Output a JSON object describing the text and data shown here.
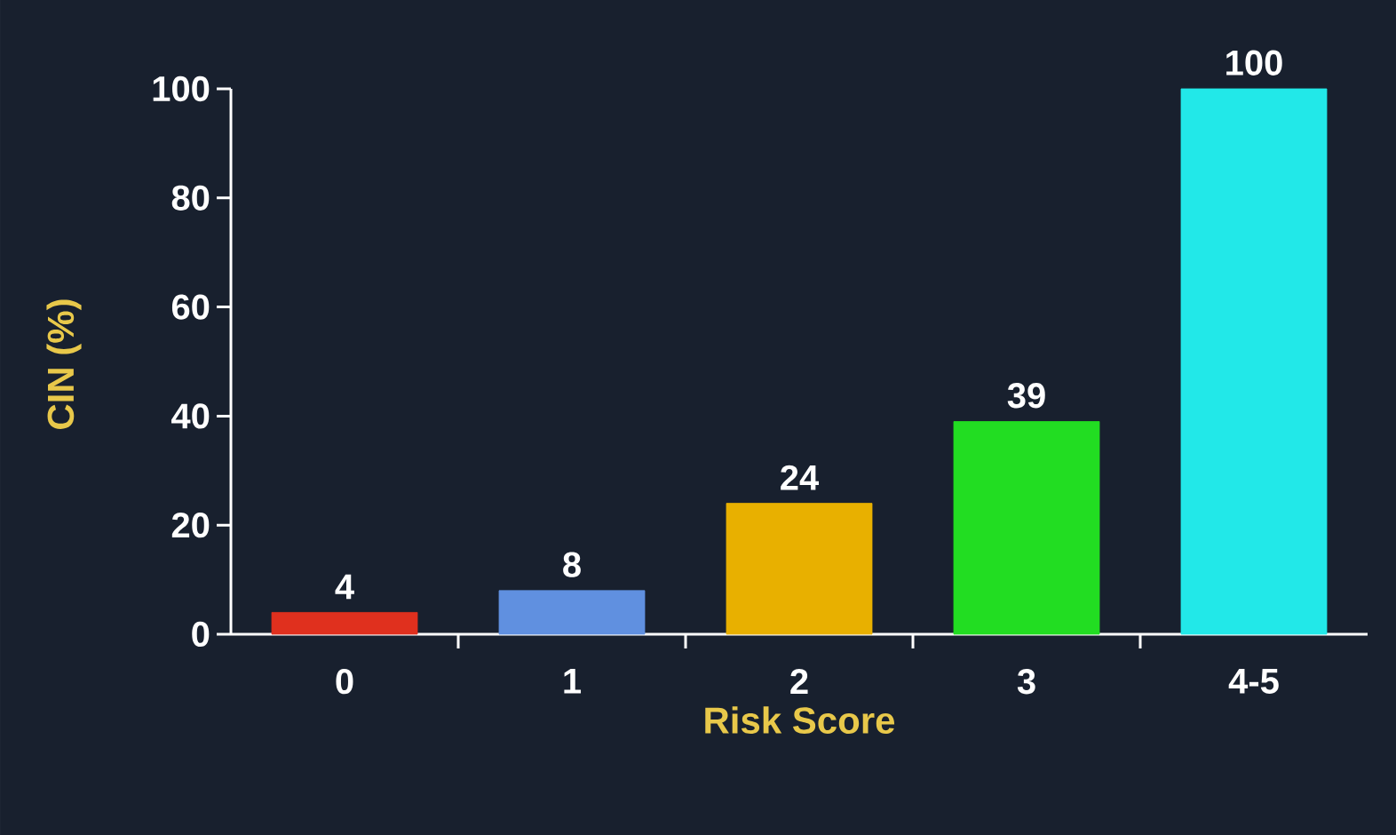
{
  "chart_data": {
    "type": "bar",
    "xlabel": "Risk Score",
    "ylabel": "CIN (%)",
    "categories": [
      "0",
      "1",
      "2",
      "3",
      "4-5"
    ],
    "values": [
      4,
      8,
      24,
      39,
      100
    ],
    "colors": [
      "#e0301e",
      "#6090e0",
      "#e8b000",
      "#22dd22",
      "#22e8e8"
    ],
    "ylim": [
      0,
      100
    ],
    "yticks": [
      0,
      20,
      40,
      60,
      80,
      100
    ],
    "data_labels": true,
    "grid": false
  }
}
